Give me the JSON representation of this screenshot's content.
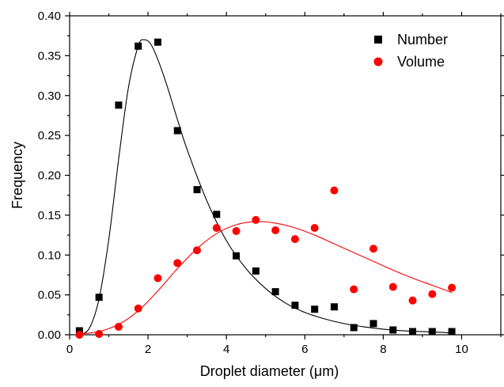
{
  "chart_data": {
    "type": "scatter",
    "xlabel": "Droplet diameter (μm)",
    "ylabel": "Frequency",
    "xlim": [
      0,
      11
    ],
    "ylim": [
      0,
      0.4
    ],
    "x_ticks": [
      "0",
      "2",
      "4",
      "6",
      "8",
      "10"
    ],
    "y_ticks": [
      "0.00",
      "0.05",
      "0.10",
      "0.15",
      "0.20",
      "0.25",
      "0.30",
      "0.35",
      "0.40"
    ],
    "legend_position": "top-right",
    "grid": false,
    "series": [
      {
        "name": "Number",
        "marker": "square",
        "color": "#000000",
        "x": [
          0.25,
          0.75,
          1.25,
          1.75,
          2.25,
          2.75,
          3.25,
          3.75,
          4.25,
          4.75,
          5.25,
          5.75,
          6.25,
          6.75,
          7.25,
          7.75,
          8.25,
          8.75,
          9.25,
          9.75
        ],
        "y": [
          0.005,
          0.047,
          0.288,
          0.362,
          0.367,
          0.256,
          0.182,
          0.151,
          0.099,
          0.08,
          0.054,
          0.037,
          0.032,
          0.035,
          0.009,
          0.014,
          0.006,
          0.004,
          0.004,
          0.004
        ],
        "fit": {
          "color": "#000000",
          "x": [
            0.25,
            0.5,
            0.75,
            1.0,
            1.25,
            1.5,
            1.75,
            1.9,
            2.1,
            2.4,
            2.75,
            3.0,
            3.5,
            4.0,
            4.5,
            5.0,
            5.5,
            6.0,
            6.5,
            7.0,
            7.5,
            8.0,
            8.5,
            9.0,
            9.5,
            9.75
          ],
          "y": [
            0.0,
            0.008,
            0.045,
            0.12,
            0.22,
            0.31,
            0.362,
            0.37,
            0.362,
            0.325,
            0.27,
            0.232,
            0.168,
            0.118,
            0.083,
            0.058,
            0.04,
            0.028,
            0.02,
            0.014,
            0.01,
            0.007,
            0.005,
            0.004,
            0.003,
            0.002
          ]
        }
      },
      {
        "name": "Volume",
        "marker": "circle",
        "color": "#ff0000",
        "x": [
          0.25,
          0.75,
          1.25,
          1.75,
          2.25,
          2.75,
          3.25,
          3.75,
          4.25,
          4.75,
          5.25,
          5.75,
          6.25,
          6.75,
          7.25,
          7.75,
          8.25,
          8.75,
          9.25,
          9.75
        ],
        "y": [
          0.0,
          0.001,
          0.01,
          0.033,
          0.071,
          0.09,
          0.106,
          0.134,
          0.13,
          0.144,
          0.131,
          0.12,
          0.134,
          0.181,
          0.057,
          0.108,
          0.06,
          0.043,
          0.051,
          0.059
        ],
        "fit": {
          "color": "#ff0000",
          "x": [
            0.25,
            0.75,
            1.25,
            1.75,
            2.25,
            2.75,
            3.25,
            3.75,
            4.25,
            4.75,
            5.25,
            5.75,
            6.25,
            6.75,
            7.25,
            7.75,
            8.25,
            8.75,
            9.25,
            9.75
          ],
          "y": [
            0.001,
            0.004,
            0.013,
            0.03,
            0.055,
            0.083,
            0.108,
            0.127,
            0.138,
            0.142,
            0.14,
            0.134,
            0.125,
            0.114,
            0.103,
            0.092,
            0.081,
            0.071,
            0.062,
            0.053
          ]
        }
      }
    ]
  }
}
